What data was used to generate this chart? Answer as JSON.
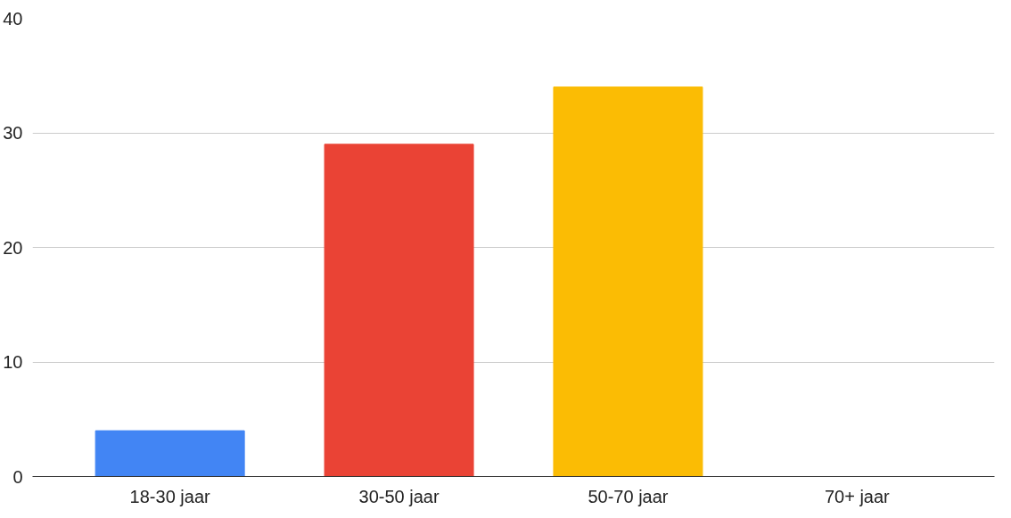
{
  "chart_data": {
    "type": "bar",
    "categories": [
      "18-30 jaar",
      "30-50 jaar",
      "50-70 jaar",
      "70+ jaar"
    ],
    "values": [
      4,
      29,
      34,
      0
    ],
    "colors": [
      "#4285f4",
      "#ea4335",
      "#fbbc04",
      "#34a853"
    ],
    "ylim": [
      0,
      40
    ],
    "yticks": [
      0,
      10,
      20,
      30,
      40
    ],
    "grid": "y"
  }
}
